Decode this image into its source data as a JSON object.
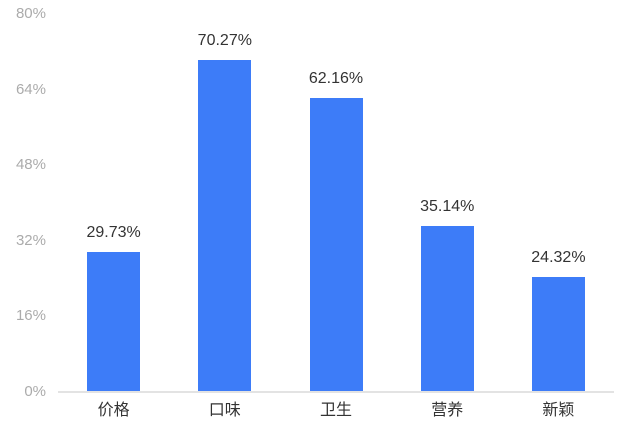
{
  "chart_data": {
    "type": "bar",
    "categories": [
      "价格",
      "口味",
      "卫生",
      "营养",
      "新颖"
    ],
    "values": [
      29.73,
      70.27,
      62.16,
      35.14,
      24.32
    ],
    "value_labels": [
      "29.73%",
      "70.27%",
      "62.16%",
      "35.14%",
      "24.32%"
    ],
    "y_tick_labels": [
      "80%",
      "64%",
      "48%",
      "32%",
      "16%",
      "0%"
    ],
    "title": "",
    "xlabel": "",
    "ylabel": "",
    "ylim": [
      0,
      80
    ],
    "grid": false,
    "legend": false,
    "bar_color": "#3D7CF8",
    "axis_line_color": "#E3E3E3",
    "tick_label_color": "#ABABAB",
    "value_label_color": "#333333",
    "background": "#FFFFFF"
  }
}
